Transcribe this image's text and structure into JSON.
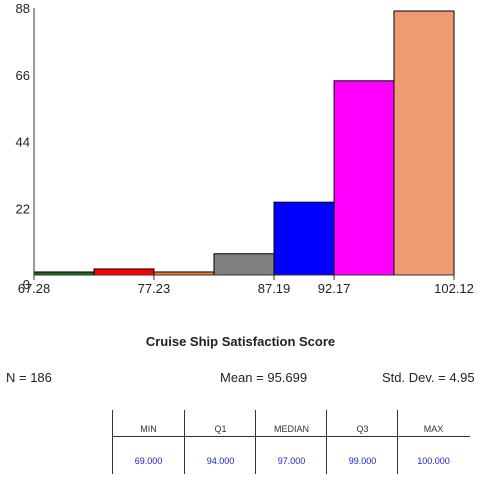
{
  "chart_data": {
    "type": "histogram",
    "title": "Cruise Ship Satisfaction Score",
    "xlabel": "",
    "ylabel": "",
    "x_tick_labels": [
      "67.28",
      "77.23",
      "87.19",
      "92.17",
      "102.12"
    ],
    "x_tick_values": [
      67.28,
      77.23,
      87.19,
      92.17,
      102.12
    ],
    "y_tick_labels": [
      "0",
      "22",
      "44",
      "66",
      "88"
    ],
    "y_tick_values": [
      0,
      22,
      44,
      66,
      88
    ],
    "xlim": [
      67.28,
      102.12
    ],
    "ylim": [
      0,
      88
    ],
    "bins": [
      {
        "start": 67.28,
        "end": 72.26,
        "count": 1,
        "color": "#1a6b1a"
      },
      {
        "start": 72.26,
        "end": 77.23,
        "count": 2,
        "color": "#ff0000"
      },
      {
        "start": 77.23,
        "end": 82.21,
        "count": 1,
        "color": "#f07f2a"
      },
      {
        "start": 82.21,
        "end": 87.19,
        "count": 7,
        "color": "#808080"
      },
      {
        "start": 87.19,
        "end": 92.17,
        "count": 24,
        "color": "#0000ff"
      },
      {
        "start": 92.17,
        "end": 97.14,
        "count": 64,
        "color": "#ff00ff"
      },
      {
        "start": 97.14,
        "end": 102.12,
        "count": 87,
        "color": "#f09a73"
      }
    ]
  },
  "stats": {
    "n": "N = 186",
    "mean": "Mean = 95.699",
    "sd": "Std. Dev. = 4.95"
  },
  "summary": [
    {
      "label": "MIN",
      "value": "69.000"
    },
    {
      "label": "Q1",
      "value": "94.000"
    },
    {
      "label": "MEDIAN",
      "value": "97.000"
    },
    {
      "label": "Q3",
      "value": "99.000"
    },
    {
      "label": "MAX",
      "value": "100.000"
    }
  ]
}
